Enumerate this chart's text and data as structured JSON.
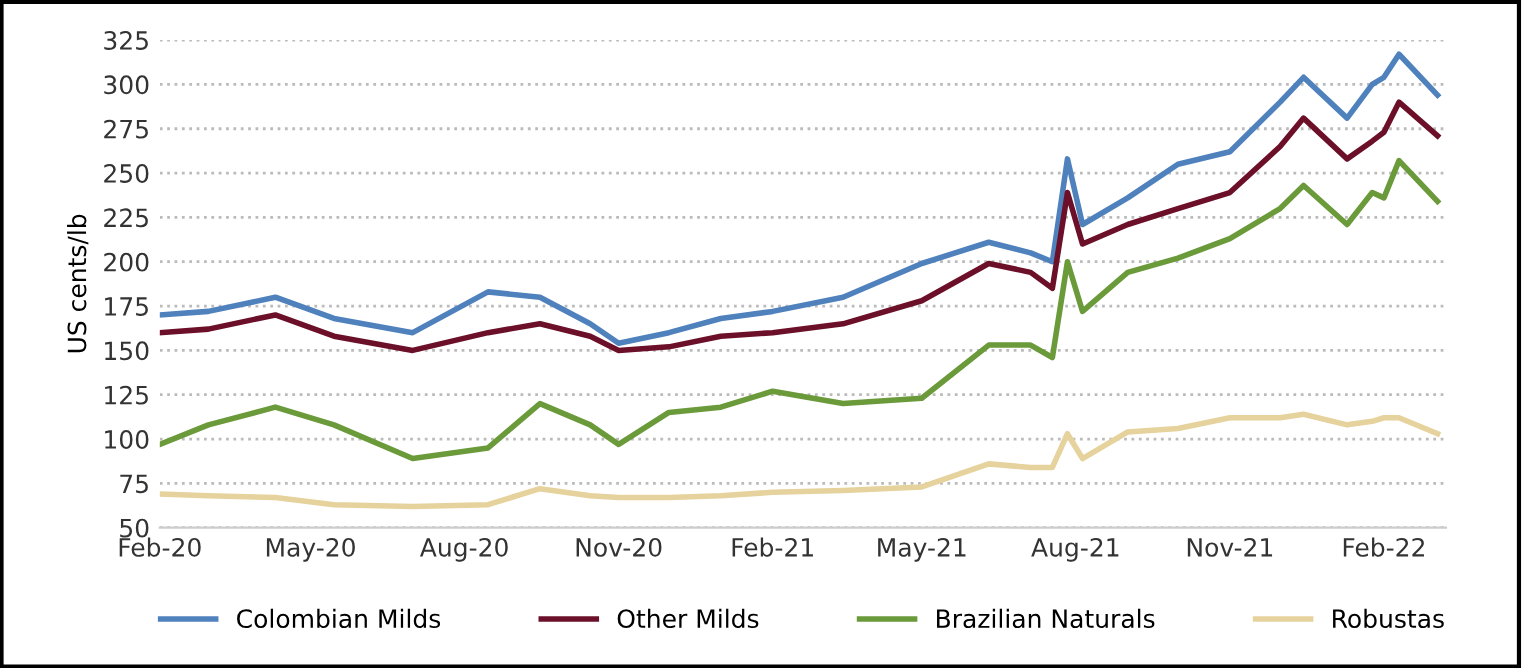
{
  "chart_data": {
    "type": "line",
    "ylabel": "US cents/lb",
    "ylim": [
      50,
      325
    ],
    "yticks": [
      50,
      75,
      100,
      125,
      150,
      175,
      200,
      225,
      250,
      275,
      300,
      325
    ],
    "xlim": [
      "2020-02-01",
      "2022-03-10"
    ],
    "xticks": [
      {
        "value": "2020-02-01",
        "label": "Feb-20"
      },
      {
        "value": "2020-05-01",
        "label": "May-20"
      },
      {
        "value": "2020-08-01",
        "label": "Aug-20"
      },
      {
        "value": "2020-11-01",
        "label": "Nov-20"
      },
      {
        "value": "2021-02-01",
        "label": "Feb-21"
      },
      {
        "value": "2021-05-01",
        "label": "May-21"
      },
      {
        "value": "2021-08-01",
        "label": "Aug-21"
      },
      {
        "value": "2021-11-01",
        "label": "Nov-21"
      },
      {
        "value": "2022-02-01",
        "label": "Feb-22"
      }
    ],
    "x": [
      "2020-02-01",
      "2020-03-01",
      "2020-04-10",
      "2020-05-15",
      "2020-07-01",
      "2020-08-15",
      "2020-09-15",
      "2020-10-15",
      "2020-11-01",
      "2020-12-01",
      "2021-01-01",
      "2021-02-01",
      "2021-03-15",
      "2021-05-01",
      "2021-06-10",
      "2021-07-05",
      "2021-07-18",
      "2021-07-27",
      "2021-08-05",
      "2021-09-01",
      "2021-10-01",
      "2021-11-01",
      "2021-12-01",
      "2021-12-15",
      "2022-01-10",
      "2022-01-25",
      "2022-02-01",
      "2022-02-10",
      "2022-03-05"
    ],
    "series": [
      {
        "name": "Colombian Milds",
        "color": "#4f81bd",
        "values": [
          170,
          172,
          180,
          168,
          160,
          183,
          180,
          165,
          154,
          160,
          168,
          172,
          180,
          199,
          211,
          205,
          200,
          258,
          221,
          236,
          255,
          262,
          290,
          304,
          281,
          300,
          304,
          317,
          294
        ]
      },
      {
        "name": "Other Milds",
        "color": "#6b1028",
        "values": [
          160,
          162,
          170,
          158,
          150,
          160,
          165,
          158,
          150,
          152,
          158,
          160,
          165,
          178,
          199,
          194,
          185,
          239,
          210,
          221,
          230,
          239,
          265,
          281,
          258,
          268,
          273,
          290,
          271
        ]
      },
      {
        "name": "Brazilian Naturals",
        "color": "#6a9a3a",
        "values": [
          97,
          108,
          118,
          108,
          89,
          95,
          120,
          108,
          97,
          115,
          118,
          127,
          120,
          123,
          153,
          153,
          146,
          200,
          172,
          194,
          202,
          213,
          230,
          243,
          221,
          239,
          236,
          257,
          234
        ]
      },
      {
        "name": "Robustas",
        "color": "#e6d29c",
        "values": [
          69,
          68,
          67,
          63,
          62,
          63,
          72,
          68,
          67,
          67,
          68,
          70,
          71,
          73,
          86,
          84,
          84,
          103,
          89,
          104,
          106,
          112,
          112,
          114,
          108,
          110,
          112,
          112,
          103
        ]
      }
    ],
    "grid": "y",
    "legend": "bottom",
    "line_style": "solid",
    "marker": "none"
  }
}
